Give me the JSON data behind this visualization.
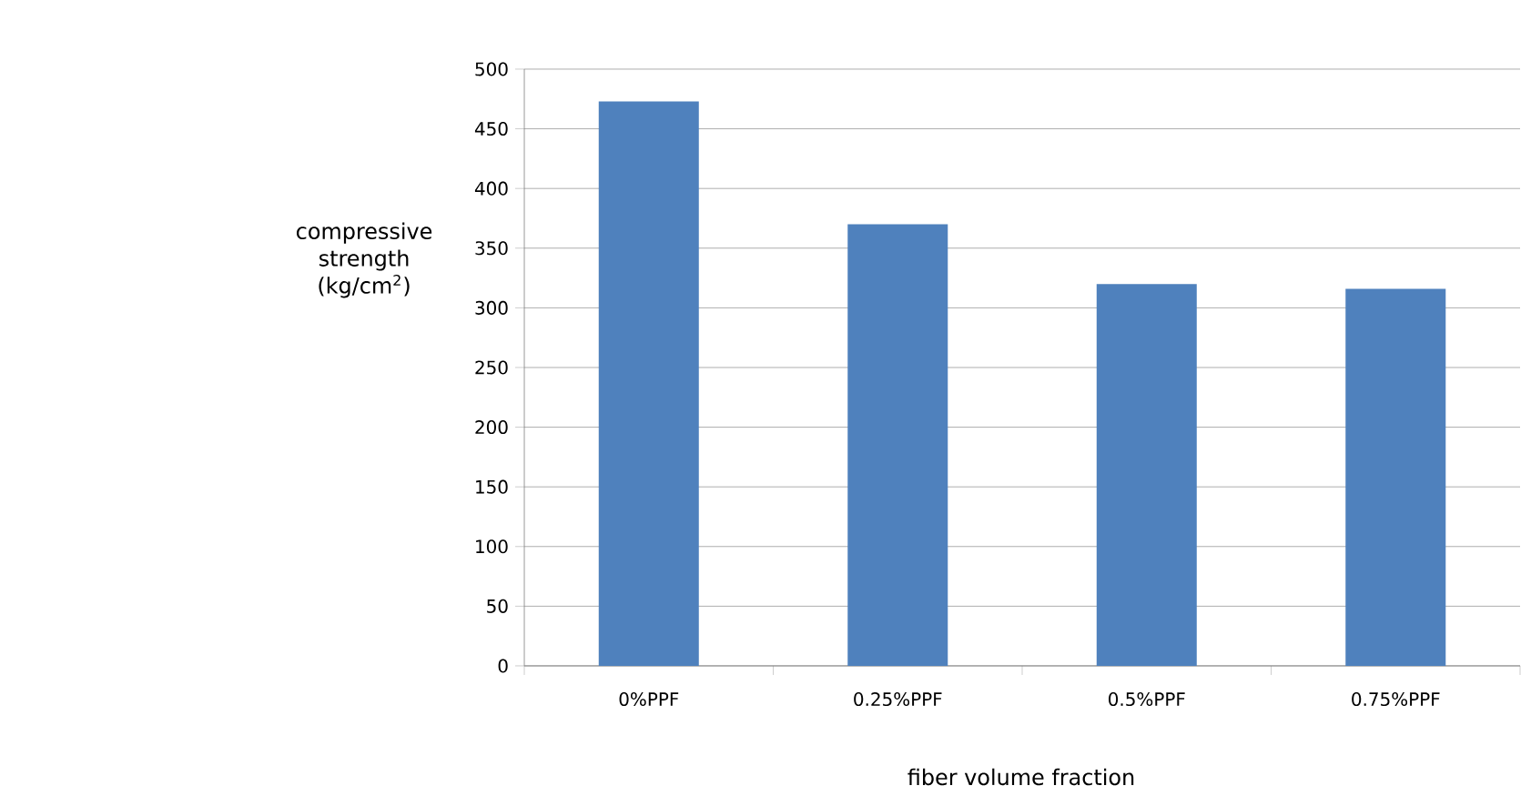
{
  "chart_data": {
    "type": "bar",
    "xlabel": "fiber volume fraction",
    "ylabel": "compressive strength (kg/cm$^{2}$)",
    "categories": [
      "0%PPF",
      "0.25%PPF",
      "0.5%PPF",
      "0.75%PPF"
    ],
    "values": [
      473,
      370,
      320,
      316
    ],
    "color": "#4f81bd",
    "ylim": [
      0,
      500
    ],
    "yticks": [
      0,
      50,
      100,
      150,
      200,
      250,
      300,
      350,
      400,
      450,
      500
    ],
    "grid": "y"
  }
}
